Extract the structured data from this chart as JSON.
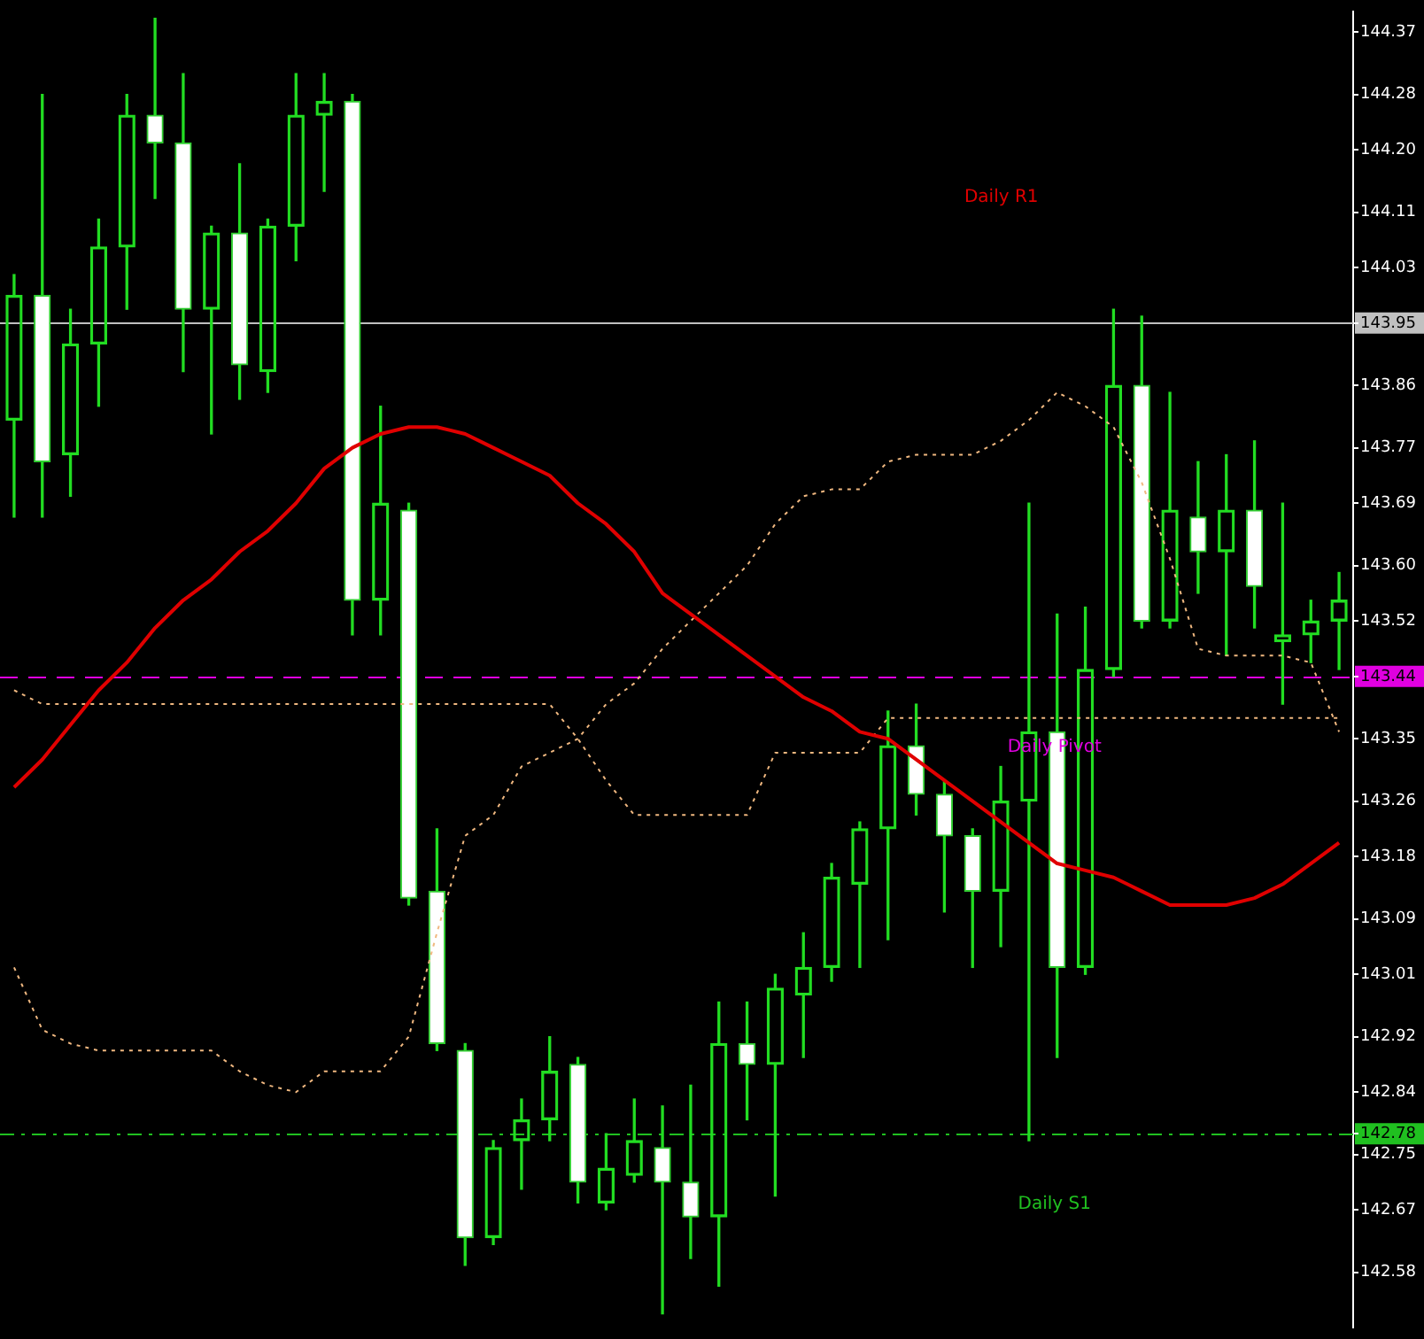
{
  "chart_data": {
    "type": "candlestick",
    "categories": [
      null,
      null,
      null,
      null,
      null,
      null,
      null,
      null,
      null,
      null,
      null,
      null,
      null,
      null,
      null,
      null,
      null,
      null,
      null,
      null,
      null,
      null,
      null,
      null,
      null,
      null,
      null,
      null,
      null,
      null,
      null,
      null,
      null,
      null,
      null,
      null,
      null,
      null,
      null,
      null,
      null,
      null,
      null,
      null,
      null,
      null,
      null,
      null
    ],
    "ohlc": [
      [
        143.81,
        144.02,
        143.67,
        143.99
      ],
      [
        143.99,
        144.28,
        143.67,
        143.75
      ],
      [
        143.76,
        143.97,
        143.7,
        143.92
      ],
      [
        143.92,
        144.1,
        143.83,
        144.06
      ],
      [
        144.06,
        144.28,
        143.97,
        144.25
      ],
      [
        144.25,
        144.39,
        144.13,
        144.21
      ],
      [
        144.21,
        144.31,
        143.88,
        143.97
      ],
      [
        143.97,
        144.09,
        143.79,
        144.08
      ],
      [
        144.08,
        144.18,
        143.84,
        143.89
      ],
      [
        143.88,
        144.1,
        143.85,
        144.09
      ],
      [
        144.09,
        144.31,
        144.04,
        144.25
      ],
      [
        144.25,
        144.31,
        144.14,
        144.27
      ],
      [
        144.27,
        144.28,
        143.5,
        143.55
      ],
      [
        143.55,
        143.83,
        143.5,
        143.69
      ],
      [
        143.68,
        143.69,
        143.11,
        143.12
      ],
      [
        143.13,
        143.22,
        142.9,
        142.91
      ],
      [
        142.9,
        142.91,
        142.59,
        142.63
      ],
      [
        142.63,
        142.77,
        142.62,
        142.76
      ],
      [
        142.77,
        142.83,
        142.7,
        142.8
      ],
      [
        142.8,
        142.92,
        142.77,
        142.87
      ],
      [
        142.88,
        142.89,
        142.68,
        142.71
      ],
      [
        142.68,
        142.78,
        142.67,
        142.73
      ],
      [
        142.72,
        142.83,
        142.71,
        142.77
      ],
      [
        142.76,
        142.82,
        142.52,
        142.71
      ],
      [
        142.71,
        142.85,
        142.6,
        142.66
      ],
      [
        142.66,
        142.97,
        142.56,
        142.91
      ],
      [
        142.91,
        142.97,
        142.8,
        142.88
      ],
      [
        142.88,
        143.01,
        142.69,
        142.99
      ],
      [
        142.98,
        143.07,
        142.89,
        143.02
      ],
      [
        143.02,
        143.17,
        143.0,
        143.15
      ],
      [
        143.14,
        143.23,
        143.02,
        143.22
      ],
      [
        143.22,
        143.39,
        143.06,
        143.34
      ],
      [
        143.34,
        143.4,
        143.24,
        143.27
      ],
      [
        143.27,
        143.29,
        143.1,
        143.21
      ],
      [
        143.21,
        143.22,
        143.02,
        143.13
      ],
      [
        143.13,
        143.31,
        143.05,
        143.26
      ],
      [
        143.26,
        143.69,
        142.77,
        143.36
      ],
      [
        143.36,
        143.53,
        142.89,
        143.02
      ],
      [
        143.02,
        143.54,
        143.01,
        143.45
      ],
      [
        143.45,
        143.97,
        143.44,
        143.86
      ],
      [
        143.86,
        143.96,
        143.51,
        143.52
      ],
      [
        143.52,
        143.85,
        143.51,
        143.68
      ],
      [
        143.67,
        143.75,
        143.56,
        143.62
      ],
      [
        143.62,
        143.76,
        143.47,
        143.68
      ],
      [
        143.68,
        143.78,
        143.51,
        143.57
      ],
      [
        143.49,
        143.69,
        143.4,
        143.5
      ],
      [
        143.5,
        143.55,
        143.46,
        143.52
      ],
      [
        143.52,
        143.59,
        143.45,
        143.55
      ]
    ],
    "series": [
      {
        "type": "line",
        "color": "#e00000",
        "line_style": "solid",
        "values": [
          143.28,
          143.32,
          143.37,
          143.42,
          143.46,
          143.51,
          143.55,
          143.58,
          143.62,
          143.65,
          143.69,
          143.74,
          143.77,
          143.79,
          143.8,
          143.8,
          143.79,
          143.77,
          143.75,
          143.73,
          143.69,
          143.66,
          143.62,
          143.56,
          143.53,
          143.5,
          143.47,
          143.44,
          143.41,
          143.39,
          143.36,
          143.35,
          143.32,
          143.29,
          143.26,
          143.23,
          143.2,
          143.17,
          143.16,
          143.15,
          143.13,
          143.11,
          143.11,
          143.11,
          143.12,
          143.14,
          143.17,
          143.2
        ]
      },
      {
        "type": "line",
        "color": "#f0b880",
        "line_style": "dotted",
        "values": [
          143.42,
          143.4,
          143.4,
          143.4,
          143.4,
          143.4,
          143.4,
          143.4,
          143.4,
          143.4,
          143.4,
          143.4,
          143.4,
          143.4,
          143.4,
          143.4,
          143.4,
          143.4,
          143.4,
          143.4,
          143.35,
          143.29,
          143.24,
          143.24,
          143.24,
          143.24,
          143.24,
          143.33,
          143.33,
          143.33,
          143.33,
          143.38,
          143.38,
          143.38,
          143.38,
          143.38,
          143.38,
          143.38,
          143.38,
          143.38,
          143.38,
          143.38,
          143.38,
          143.38,
          143.38,
          143.38,
          143.38,
          143.38
        ]
      },
      {
        "type": "line",
        "color": "#f0b880",
        "line_style": "dotted",
        "values": [
          143.02,
          142.93,
          142.91,
          142.9,
          142.9,
          142.9,
          142.9,
          142.9,
          142.87,
          142.85,
          142.84,
          142.87,
          142.87,
          142.87,
          142.92,
          143.07,
          143.21,
          143.24,
          143.31,
          143.33,
          143.35,
          143.4,
          143.43,
          143.48,
          143.52,
          143.56,
          143.6,
          143.66,
          143.7,
          143.71,
          143.71,
          143.75,
          143.76,
          143.76,
          143.76,
          143.78,
          143.81,
          143.85,
          143.83,
          143.8,
          143.72,
          143.61,
          143.48,
          143.47,
          143.47,
          143.47,
          143.46,
          143.36
        ]
      }
    ],
    "ylim": [
      142.5,
      144.4
    ],
    "yticks": [
      144.37,
      144.28,
      {
        "value": 144.2,
        "label": "144.20"
      },
      144.11,
      144.03,
      {
        "value": 143.95,
        "label": "143.95"
      },
      143.86,
      143.77,
      143.69,
      {
        "value": 143.6,
        "label": "143.60"
      },
      143.52,
      143.44,
      143.35,
      143.26,
      143.18,
      143.09,
      143.01,
      142.92,
      142.84,
      142.78,
      142.75,
      142.67,
      142.58
    ],
    "tick_labels": "y",
    "ref_lines": [
      {
        "axis": "y",
        "value": 143.95,
        "color": "#c0c0c0",
        "line_style": "solid"
      },
      {
        "axis": "y",
        "value": 143.44,
        "label": "Daily Pivot",
        "color": "#e000e0",
        "line_style": "dashed"
      },
      {
        "axis": "y",
        "value": 142.78,
        "label": "Daily S1",
        "color": "#20c020",
        "line_style": "dashdot"
      }
    ],
    "annotations": [
      "Daily R1"
    ]
  }
}
